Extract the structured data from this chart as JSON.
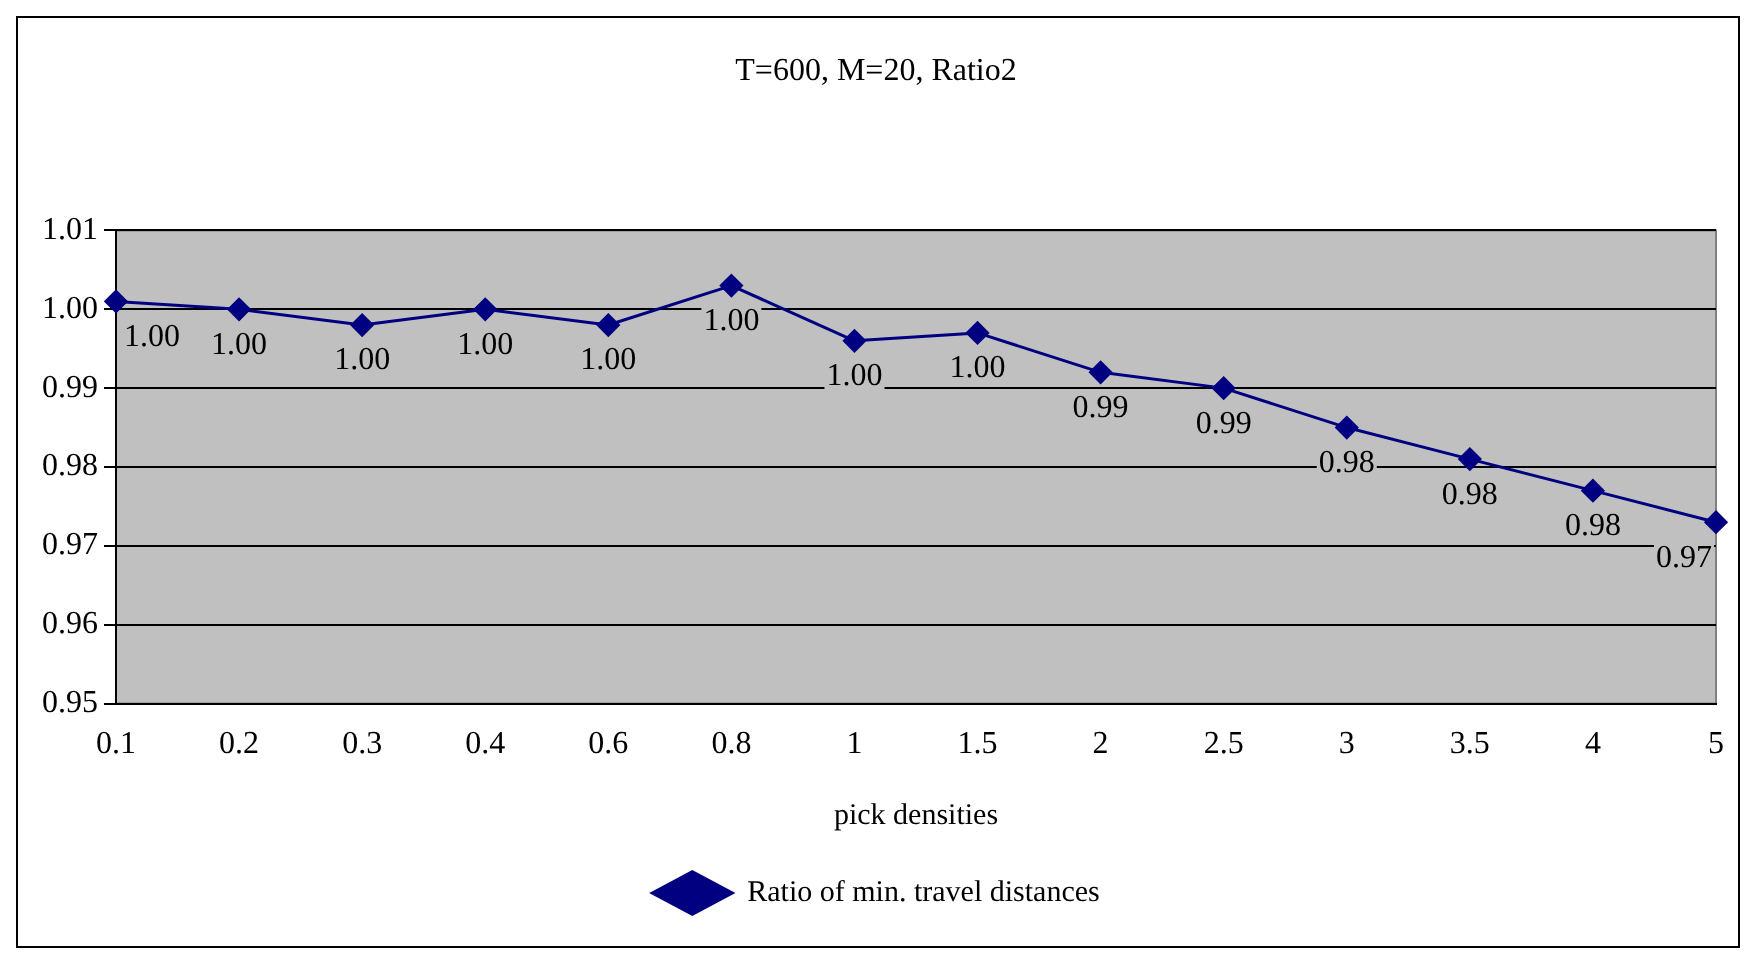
{
  "chart_data": {
    "type": "line",
    "title": "T=600, M=20, Ratio2",
    "xlabel": "pick densities",
    "categories": [
      "0.1",
      "0.2",
      "0.3",
      "0.4",
      "0.6",
      "0.8",
      "1",
      "1.5",
      "2",
      "2.5",
      "3",
      "3.5",
      "4",
      "5"
    ],
    "series": [
      {
        "name": "Ratio of min. travel distances",
        "color": "#000080",
        "values": [
          1.001,
          1.0,
          0.998,
          1.0,
          0.998,
          1.003,
          0.996,
          0.997,
          0.992,
          0.99,
          0.985,
          0.981,
          0.977,
          0.973
        ],
        "value_labels": [
          "1.00",
          "1.00",
          "1.00",
          "1.00",
          "1.00",
          "1.00",
          "1.00",
          "1.00",
          "0.99",
          "0.99",
          "0.98",
          "0.98",
          "0.98",
          "0.97"
        ]
      }
    ],
    "ylim": [
      0.95,
      1.01
    ],
    "yticks": [
      {
        "value": 0.95,
        "label": "0.95"
      },
      {
        "value": 0.96,
        "label": "0.96"
      },
      {
        "value": 0.97,
        "label": "0.97"
      },
      {
        "value": 0.98,
        "label": "0.98"
      },
      {
        "value": 0.99,
        "label": "0.99"
      },
      {
        "value": 1.0,
        "label": "1.00"
      },
      {
        "value": 1.01,
        "label": "1.01"
      }
    ],
    "grid": "y",
    "legend": "bottom",
    "marker": "diamond",
    "line_style": "solid"
  }
}
